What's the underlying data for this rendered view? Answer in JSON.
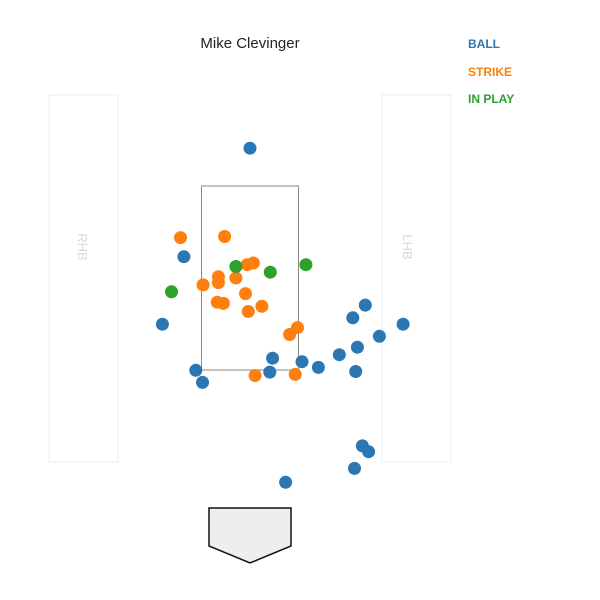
{
  "chart_data": {
    "type": "scatter",
    "title": "Mike Clevinger",
    "batter_boxes": {
      "left_label": "RHB",
      "right_label": "LHB"
    },
    "legend": [
      {
        "label": "BALL",
        "color": "#2a77b4"
      },
      {
        "label": "STRIKE",
        "color": "#fe7f0e"
      },
      {
        "label": "IN PLAY",
        "color": "#2ca12c"
      }
    ],
    "series": [
      {
        "name": "BALL",
        "color": "#2a77b4",
        "points": [
          [
            0.0,
            5.05
          ],
          [
            -1.17,
            3.17
          ],
          [
            2.04,
            2.33
          ],
          [
            1.82,
            2.11
          ],
          [
            -1.55,
            2.0
          ],
          [
            1.9,
            1.6
          ],
          [
            2.71,
            2.0
          ],
          [
            2.29,
            1.79
          ],
          [
            1.58,
            1.47
          ],
          [
            0.4,
            1.41
          ],
          [
            0.92,
            1.35
          ],
          [
            1.21,
            1.25
          ],
          [
            -0.96,
            1.2
          ],
          [
            0.35,
            1.17
          ],
          [
            1.87,
            1.18
          ],
          [
            -0.84,
            0.99
          ],
          [
            1.99,
            -0.11
          ],
          [
            2.1,
            -0.21
          ],
          [
            1.85,
            -0.5
          ],
          [
            0.63,
            -0.74
          ]
        ]
      },
      {
        "name": "STRIKE",
        "color": "#fe7f0e",
        "points": [
          [
            -1.23,
            3.5
          ],
          [
            -0.45,
            3.52
          ],
          [
            0.06,
            3.06
          ],
          [
            -0.05,
            3.03
          ],
          [
            -0.56,
            2.82
          ],
          [
            -0.25,
            2.8
          ],
          [
            -0.83,
            2.68
          ],
          [
            -0.56,
            2.72
          ],
          [
            -0.08,
            2.53
          ],
          [
            -0.58,
            2.38
          ],
          [
            -0.47,
            2.36
          ],
          [
            0.21,
            2.31
          ],
          [
            -0.03,
            2.22
          ],
          [
            0.84,
            1.94
          ],
          [
            0.7,
            1.82
          ],
          [
            0.09,
            1.11
          ],
          [
            0.8,
            1.13
          ]
        ]
      },
      {
        "name": "IN PLAY",
        "color": "#2ca12c",
        "points": [
          [
            -0.25,
            3.0
          ],
          [
            0.99,
            3.03
          ],
          [
            0.36,
            2.9
          ],
          [
            -1.39,
            2.56
          ]
        ]
      }
    ]
  }
}
